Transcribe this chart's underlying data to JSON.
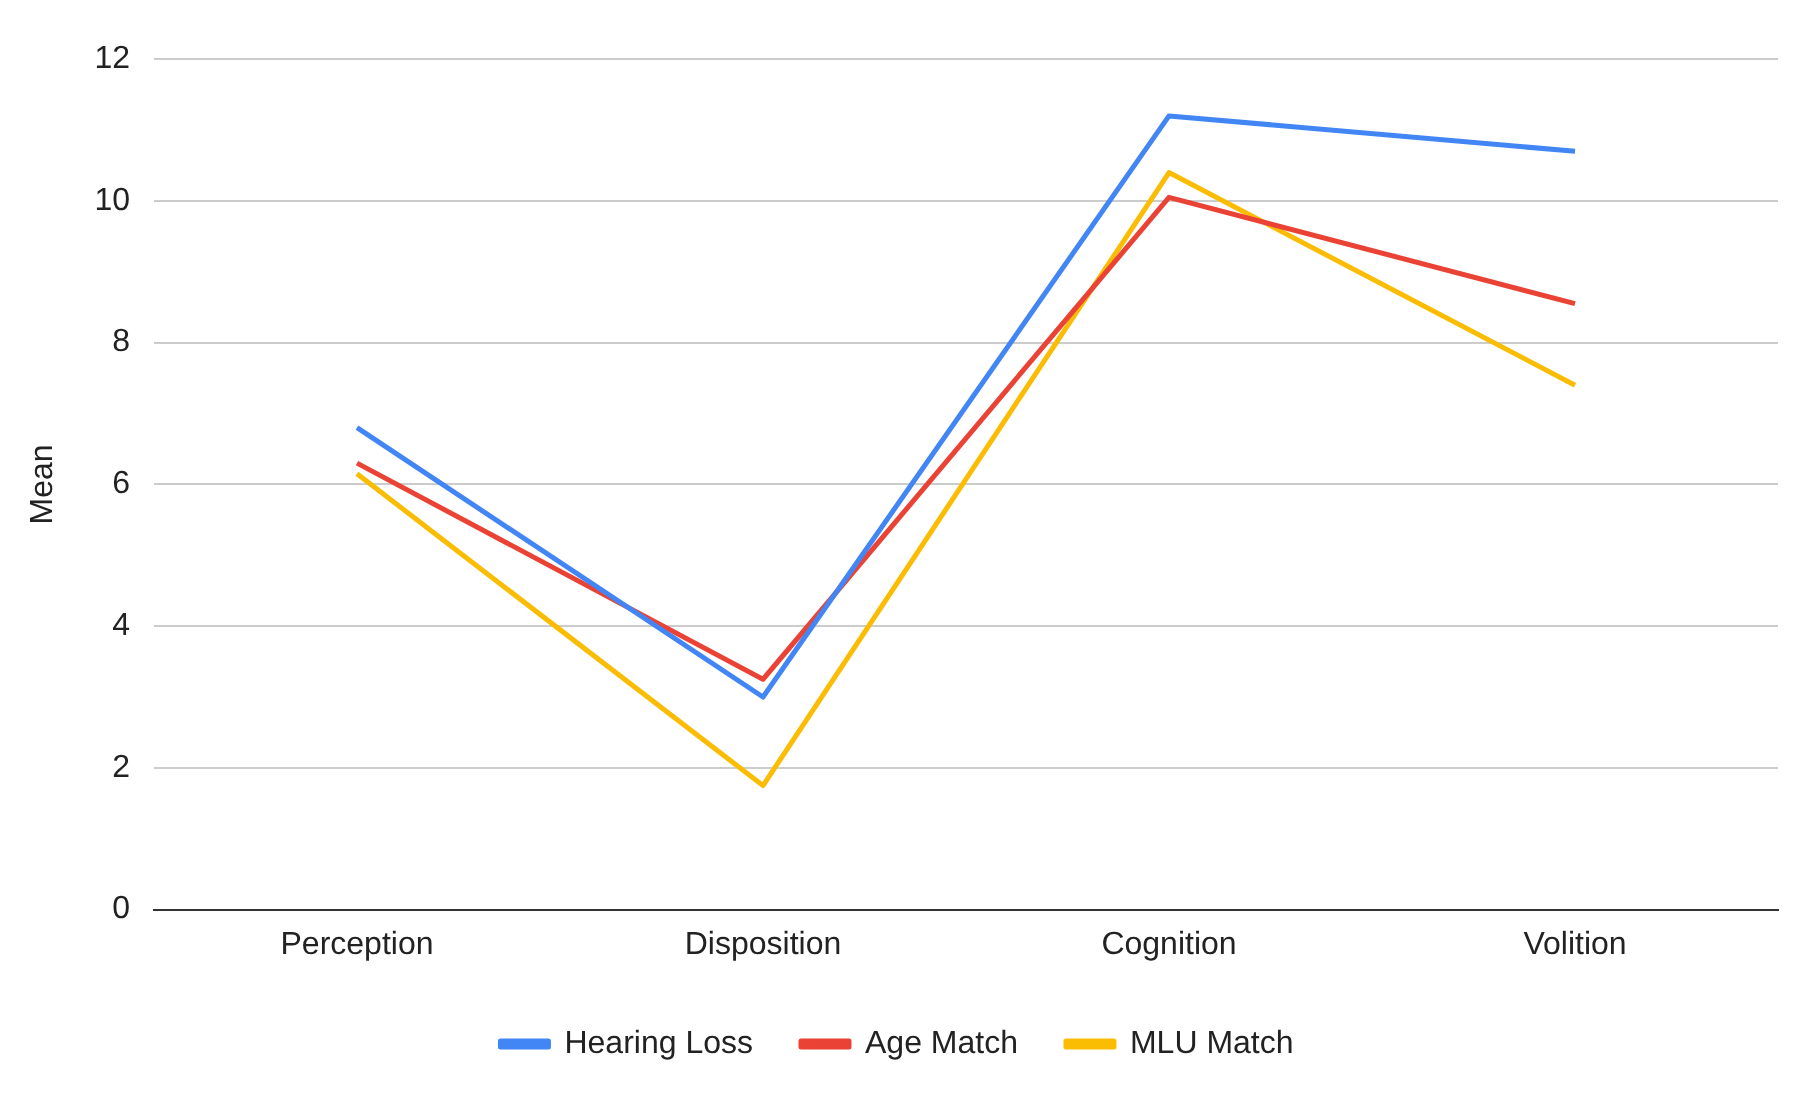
{
  "chart_data": {
    "type": "line",
    "ylabel": "Mean",
    "categories": [
      "Perception",
      "Disposition",
      "Cognition",
      "Volition"
    ],
    "series": [
      {
        "name": "Hearing Loss",
        "color": "#4285f4",
        "values": [
          6.8,
          3.0,
          11.2,
          10.7
        ]
      },
      {
        "name": "Age Match",
        "color": "#ea4335",
        "values": [
          6.3,
          3.25,
          10.05,
          8.55
        ]
      },
      {
        "name": "MLU Match",
        "color": "#fbbc04",
        "values": [
          6.15,
          1.75,
          10.4,
          7.4
        ]
      }
    ],
    "ylim": [
      0,
      12
    ],
    "yticks": [
      0,
      2,
      4,
      6,
      8,
      10,
      12
    ],
    "grid": "y",
    "legend": "bottom",
    "marker": "none",
    "line_style": "solid"
  }
}
